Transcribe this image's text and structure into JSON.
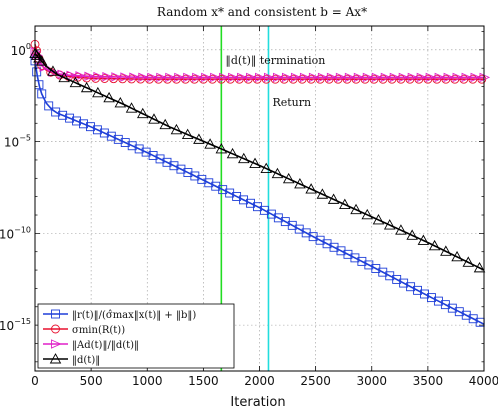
{
  "chart_data": {
    "type": "line",
    "title": "Random x* and consistent b = Ax*",
    "xlabel": "Iteration",
    "ylabel": "",
    "xlim": [
      0,
      4000
    ],
    "ylim_log10": [
      -17.5,
      1.3
    ],
    "y_scale": "log",
    "grid": true,
    "legend_position": "bottom-left",
    "x_ticks": [
      0,
      500,
      1000,
      1500,
      2000,
      2500,
      3000,
      3500,
      4000
    ],
    "x_tick_labels": [
      "0",
      "500",
      "1000",
      "1500",
      "2000",
      "2500",
      "3000",
      "3500",
      "4000"
    ],
    "y_ticks_log10": [
      0,
      -5,
      -10,
      -15
    ],
    "y_tick_labels": [
      {
        "base": "10",
        "exp": "0"
      },
      {
        "base": "10",
        "exp": "−5"
      },
      {
        "base": "10",
        "exp": "−10"
      },
      {
        "base": "10",
        "exp": "−15"
      }
    ],
    "vlines": [
      {
        "x": 1660,
        "color": "#22dd22",
        "label": "‖d(t)‖ termination"
      },
      {
        "x": 2080,
        "color": "#22dddd",
        "label": "Return"
      }
    ],
    "series": [
      {
        "name": "‖r(t)‖/(σ̂max‖x(t)‖ + ‖b‖)",
        "color": "#1f3fd8",
        "marker": "square",
        "x_log10y": [
          [
            0,
            -0.6
          ],
          [
            30,
            -1.8
          ],
          [
            60,
            -2.4
          ],
          [
            100,
            -2.9
          ],
          [
            150,
            -3.25
          ],
          [
            200,
            -3.45
          ],
          [
            300,
            -3.7
          ],
          [
            500,
            -4.2
          ],
          [
            1000,
            -5.6
          ],
          [
            1500,
            -7.1
          ],
          [
            2000,
            -8.6
          ],
          [
            2500,
            -10.25
          ],
          [
            3000,
            -11.8
          ],
          [
            3500,
            -13.4
          ],
          [
            4000,
            -14.95
          ]
        ]
      },
      {
        "name": "σmin(R(t))",
        "color": "#e8102e",
        "marker": "circle",
        "x_log10y": [
          [
            0,
            0.3
          ],
          [
            30,
            -0.4
          ],
          [
            60,
            -0.85
          ],
          [
            100,
            -1.1
          ],
          [
            150,
            -1.25
          ],
          [
            200,
            -1.35
          ],
          [
            300,
            -1.45
          ],
          [
            500,
            -1.55
          ],
          [
            1000,
            -1.6
          ],
          [
            2000,
            -1.6
          ],
          [
            3000,
            -1.6
          ],
          [
            4000,
            -1.6
          ]
        ]
      },
      {
        "name": "‖Ad(t)‖/‖d(t)‖",
        "color": "#e020c8",
        "marker": "triangle-right",
        "x_log10y": [
          [
            0,
            -0.1
          ],
          [
            30,
            -0.5
          ],
          [
            60,
            -0.85
          ],
          [
            100,
            -1.05
          ],
          [
            150,
            -1.2
          ],
          [
            200,
            -1.3
          ],
          [
            300,
            -1.38
          ],
          [
            500,
            -1.45
          ],
          [
            1000,
            -1.5
          ],
          [
            2000,
            -1.5
          ],
          [
            3000,
            -1.5
          ],
          [
            4000,
            -1.5
          ]
        ]
      },
      {
        "name": "‖d(t)‖",
        "color": "#000000",
        "marker": "triangle-up",
        "x_log10y": [
          [
            0,
            -0.2
          ],
          [
            100,
            -0.9
          ],
          [
            200,
            -1.35
          ],
          [
            400,
            -1.9
          ],
          [
            800,
            -3.0
          ],
          [
            1200,
            -4.2
          ],
          [
            1660,
            -5.4
          ],
          [
            2000,
            -6.3
          ],
          [
            2500,
            -7.7
          ],
          [
            3000,
            -9.1
          ],
          [
            3500,
            -10.5
          ],
          [
            4000,
            -12.0
          ]
        ]
      }
    ]
  }
}
